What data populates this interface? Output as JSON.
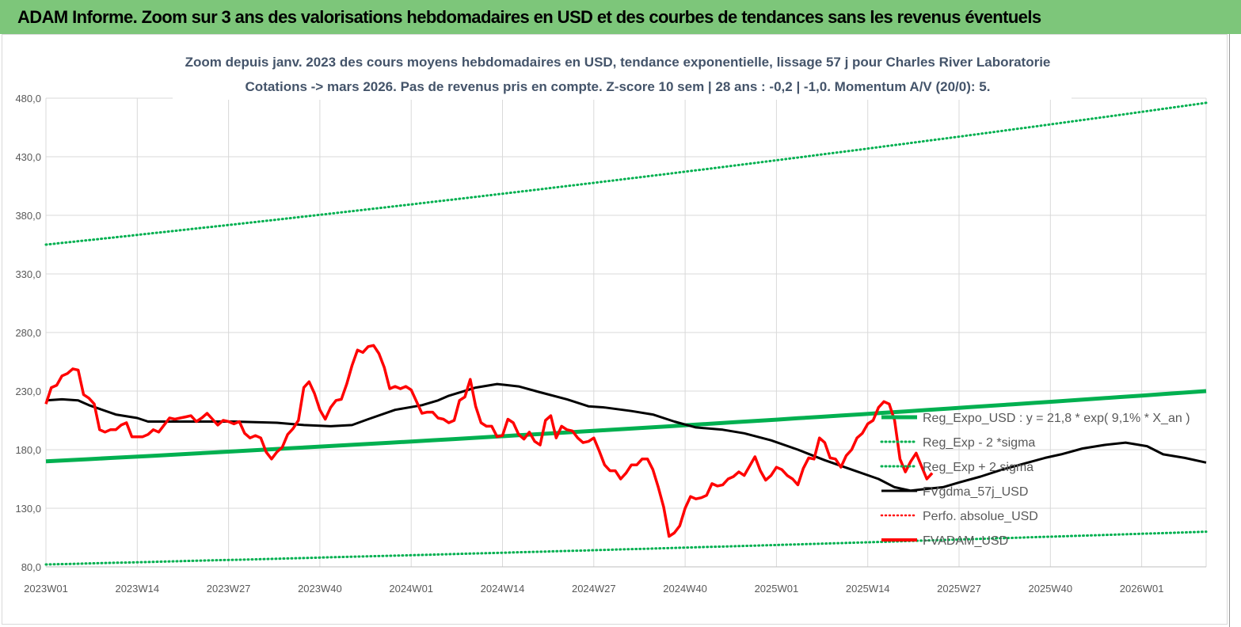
{
  "header": {
    "title": "ADAM Informe. Zoom sur 3 ans des valorisations hebdomadaires en USD et des courbes de tendances sans les revenus éventuels"
  },
  "colors": {
    "banner": "#7dc67a",
    "trend": "#00b050",
    "sigma": "#00b050",
    "moving_average": "#000000",
    "perf_absolue": "#ff0000",
    "price": "#ff0000",
    "grid": "#d9d9d9",
    "title": "#44546a"
  },
  "chart_data": {
    "type": "line",
    "title": [
      "Zoom depuis janv. 2023 des cours moyens hebdomadaires en USD, tendance exponentielle, lissage 57 j pour Charles River Laboratorie",
      "Cotations -> mars 2026. Pas de revenus pris en compte. Z-score 10 sem  | 28 ans : -0,2 | -1,0. Momentum A/V (20/0): 5."
    ],
    "ylim": [
      80,
      480
    ],
    "y_ticks": [
      "80,0",
      "130,0",
      "180,0",
      "230,0",
      "280,0",
      "330,0",
      "380,0",
      "430,0",
      "480,0"
    ],
    "y_tick_values": [
      80,
      130,
      180,
      230,
      280,
      330,
      380,
      430,
      480
    ],
    "x_ticks": [
      "2023W01",
      "2023W14",
      "2023W27",
      "2023W40",
      "2024W01",
      "2024W14",
      "2024W27",
      "2024W40",
      "2025W01",
      "2025W14",
      "2025W27",
      "2025W40",
      "2026W01"
    ],
    "x_count": 169,
    "grid": true,
    "legend_position": "right",
    "series": [
      {
        "name": "Reg_Expo_USD : y = 21,8 * exp( 9,1% * X_an )",
        "style": "solid-thick",
        "color": "#00b050",
        "start": 170,
        "end": 230
      },
      {
        "name": "Reg_Exp - 2 *sigma",
        "style": "dotted",
        "color": "#00b050",
        "start": 82,
        "end": 110
      },
      {
        "name": "Reg_Exp + 2 sigma",
        "style": "dotted",
        "color": "#00b050",
        "start": 355,
        "end": 476
      },
      {
        "name": "FVgdma_57j_USD",
        "style": "solid",
        "color": "#000000",
        "points": [
          [
            0,
            222
          ],
          [
            3,
            223
          ],
          [
            6,
            222
          ],
          [
            8,
            218
          ],
          [
            13,
            210
          ],
          [
            17,
            207
          ],
          [
            19,
            204
          ],
          [
            26,
            204
          ],
          [
            35,
            204
          ],
          [
            43,
            203
          ],
          [
            48,
            201
          ],
          [
            53,
            200
          ],
          [
            57,
            201
          ],
          [
            60,
            206
          ],
          [
            65,
            214
          ],
          [
            70,
            218
          ],
          [
            73,
            222
          ],
          [
            75,
            226
          ],
          [
            80,
            233
          ],
          [
            84,
            236
          ],
          [
            88,
            234
          ],
          [
            92,
            229
          ],
          [
            97,
            223
          ],
          [
            101,
            217
          ],
          [
            104,
            216
          ],
          [
            109,
            213
          ],
          [
            113,
            210
          ],
          [
            117,
            204
          ],
          [
            121,
            199
          ],
          [
            126,
            197
          ],
          [
            130,
            194
          ],
          [
            135,
            188
          ],
          [
            140,
            180
          ],
          [
            145,
            171
          ],
          [
            150,
            163
          ],
          [
            155,
            155
          ],
          [
            158,
            148
          ],
          [
            161,
            145
          ],
          [
            163,
            146
          ],
          [
            167,
            148
          ],
          [
            170,
            152
          ],
          [
            174,
            157
          ],
          [
            178,
            163
          ],
          [
            182,
            168
          ],
          [
            186,
            173
          ],
          [
            189,
            176
          ],
          [
            193,
            181
          ],
          [
            197,
            184
          ],
          [
            201,
            186
          ],
          [
            205,
            183
          ],
          [
            208,
            176
          ],
          [
            212,
            173
          ],
          [
            216,
            169
          ]
        ]
      },
      {
        "name": "Perfo. absolue_USD",
        "style": "dotted",
        "color": "#ff0000",
        "points": []
      },
      {
        "name": "FVADAM_USD",
        "style": "solid-thick",
        "color": "#ff0000",
        "points": [
          [
            0,
            219
          ],
          [
            1,
            233
          ],
          [
            2,
            235
          ],
          [
            3,
            243
          ],
          [
            4,
            245
          ],
          [
            5,
            249
          ],
          [
            6,
            248
          ],
          [
            7,
            227
          ],
          [
            8,
            224
          ],
          [
            9,
            219
          ],
          [
            10,
            197
          ],
          [
            11,
            195
          ],
          [
            12,
            197
          ],
          [
            13,
            197
          ],
          [
            14,
            201
          ],
          [
            15,
            203
          ],
          [
            16,
            191
          ],
          [
            17,
            191
          ],
          [
            18,
            191
          ],
          [
            19,
            193
          ],
          [
            20,
            197
          ],
          [
            21,
            195
          ],
          [
            22,
            201
          ],
          [
            23,
            207
          ],
          [
            24,
            206
          ],
          [
            25,
            207
          ],
          [
            26,
            208
          ],
          [
            27,
            209
          ],
          [
            28,
            204
          ],
          [
            29,
            207
          ],
          [
            30,
            211
          ],
          [
            31,
            206
          ],
          [
            32,
            201
          ],
          [
            33,
            205
          ],
          [
            34,
            204
          ],
          [
            35,
            202
          ],
          [
            36,
            204
          ],
          [
            37,
            194
          ],
          [
            38,
            190
          ],
          [
            39,
            192
          ],
          [
            40,
            190
          ],
          [
            41,
            178
          ],
          [
            42,
            172
          ],
          [
            43,
            178
          ],
          [
            44,
            182
          ],
          [
            45,
            193
          ],
          [
            46,
            198
          ],
          [
            47,
            205
          ],
          [
            48,
            233
          ],
          [
            49,
            238
          ],
          [
            50,
            228
          ],
          [
            51,
            214
          ],
          [
            52,
            206
          ],
          [
            53,
            216
          ],
          [
            54,
            222
          ],
          [
            55,
            223
          ],
          [
            56,
            236
          ],
          [
            57,
            252
          ],
          [
            58,
            265
          ],
          [
            59,
            263
          ],
          [
            60,
            268
          ],
          [
            61,
            269
          ],
          [
            62,
            262
          ],
          [
            63,
            250
          ],
          [
            64,
            232
          ],
          [
            65,
            234
          ],
          [
            66,
            232
          ],
          [
            67,
            234
          ],
          [
            68,
            231
          ],
          [
            69,
            221
          ],
          [
            70,
            211
          ],
          [
            71,
            212
          ],
          [
            72,
            212
          ],
          [
            73,
            207
          ],
          [
            74,
            206
          ],
          [
            75,
            203
          ],
          [
            76,
            205
          ],
          [
            77,
            222
          ],
          [
            78,
            225
          ],
          [
            79,
            240
          ],
          [
            80,
            217
          ],
          [
            81,
            203
          ],
          [
            82,
            200
          ],
          [
            83,
            200
          ],
          [
            84,
            191
          ],
          [
            85,
            192
          ],
          [
            86,
            206
          ],
          [
            87,
            203
          ],
          [
            88,
            193
          ],
          [
            89,
            189
          ],
          [
            90,
            195
          ],
          [
            91,
            187
          ],
          [
            92,
            184
          ],
          [
            93,
            205
          ],
          [
            94,
            209
          ],
          [
            95,
            190
          ],
          [
            96,
            200
          ],
          [
            97,
            197
          ],
          [
            98,
            196
          ],
          [
            99,
            190
          ],
          [
            100,
            186
          ],
          [
            101,
            187
          ],
          [
            102,
            190
          ],
          [
            103,
            179
          ],
          [
            104,
            167
          ],
          [
            105,
            162
          ],
          [
            106,
            162
          ],
          [
            107,
            155
          ],
          [
            108,
            160
          ],
          [
            109,
            167
          ],
          [
            110,
            167
          ],
          [
            111,
            172
          ],
          [
            112,
            172
          ],
          [
            113,
            163
          ],
          [
            114,
            148
          ],
          [
            115,
            131
          ],
          [
            116,
            106
          ],
          [
            117,
            109
          ],
          [
            118,
            115
          ],
          [
            119,
            130
          ],
          [
            120,
            140
          ],
          [
            121,
            138
          ],
          [
            122,
            139
          ],
          [
            123,
            141
          ],
          [
            124,
            151
          ],
          [
            125,
            149
          ],
          [
            126,
            150
          ],
          [
            127,
            155
          ],
          [
            128,
            157
          ],
          [
            129,
            161
          ],
          [
            130,
            158
          ],
          [
            131,
            166
          ],
          [
            132,
            174
          ],
          [
            133,
            162
          ],
          [
            134,
            154
          ],
          [
            135,
            158
          ],
          [
            136,
            165
          ],
          [
            137,
            163
          ],
          [
            138,
            158
          ],
          [
            139,
            155
          ],
          [
            140,
            150
          ],
          [
            141,
            164
          ],
          [
            142,
            173
          ],
          [
            143,
            172
          ],
          [
            144,
            190
          ],
          [
            145,
            186
          ],
          [
            146,
            173
          ],
          [
            147,
            172
          ],
          [
            148,
            165
          ],
          [
            149,
            175
          ],
          [
            150,
            180
          ],
          [
            151,
            190
          ],
          [
            152,
            194
          ],
          [
            153,
            202
          ],
          [
            154,
            205
          ],
          [
            155,
            216
          ],
          [
            156,
            221
          ],
          [
            157,
            219
          ],
          [
            158,
            205
          ],
          [
            159,
            172
          ],
          [
            160,
            161
          ],
          [
            161,
            170
          ],
          [
            162,
            177
          ],
          [
            163,
            166
          ],
          [
            164,
            155
          ],
          [
            165,
            160
          ]
        ]
      }
    ]
  }
}
